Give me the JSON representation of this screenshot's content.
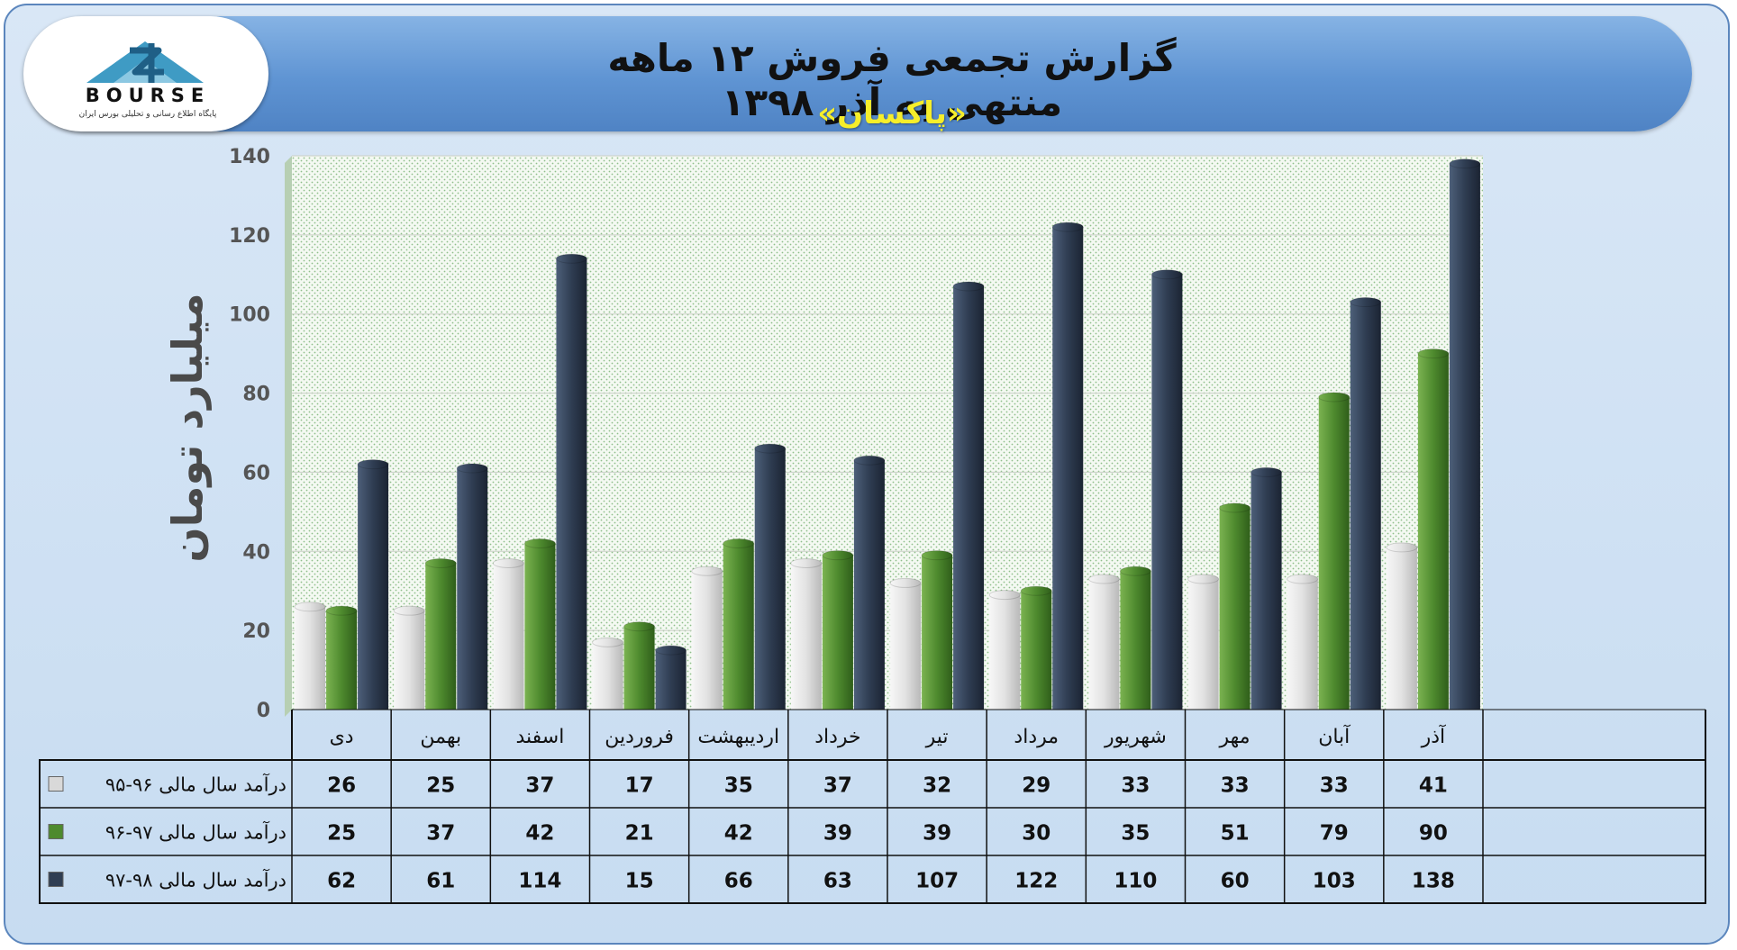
{
  "header": {
    "title": "گزارش تجمعی فروش ۱۲ ماهه منتهی به آذر ۱۳۹۸",
    "subtitle": "«پاکسان»"
  },
  "logo": {
    "wordmark": "BOURSE",
    "tagline": "پایگاه اطلاع رسانی و تحلیلی بورس ایران",
    "color": "#3f9bc4"
  },
  "chart_data": {
    "type": "bar",
    "ylabel": "میلیارد تومان",
    "ylim": [
      0,
      140
    ],
    "yticks": [
      0,
      20,
      40,
      60,
      80,
      100,
      120,
      140
    ],
    "grid": true,
    "legend": "table-left",
    "categories": [
      "آذر",
      "آبان",
      "مهر",
      "شهریور",
      "مرداد",
      "تیر",
      "خرداد",
      "اردیبهشت",
      "فروردین",
      "اسفند",
      "بهمن",
      "دی"
    ],
    "series": [
      {
        "name": "درآمد سال مالی ۹۶-۹۵",
        "color": "#d9d9d9",
        "values": [
          41,
          33,
          33,
          33,
          29,
          32,
          37,
          35,
          17,
          37,
          25,
          26
        ]
      },
      {
        "name": "درآمد سال مالی ۹۷-۹۶",
        "color": "#4e8a2e",
        "values": [
          90,
          79,
          51,
          35,
          30,
          39,
          39,
          42,
          21,
          42,
          37,
          25
        ]
      },
      {
        "name": "درآمد سال مالی ۹۸-۹۷",
        "color": "#2f3d52",
        "values": [
          138,
          103,
          60,
          110,
          122,
          107,
          63,
          66,
          15,
          114,
          61,
          62
        ]
      }
    ]
  }
}
